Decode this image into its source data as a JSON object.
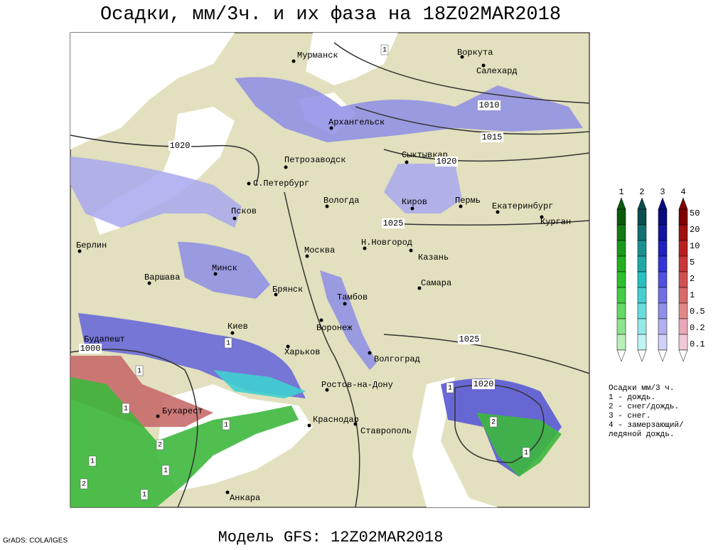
{
  "title": "Осадки, мм/3ч. и их фаза на 18Z02MAR2018",
  "footer": "Модель GFS: 12Z02MAR2018",
  "credit": "GrADS: COLA/IGES",
  "cities": [
    "Мурманск",
    "Воркута",
    "Салехард",
    "Архангельск",
    "Сыктывкар",
    "Петрозаводск",
    "С.Петербург",
    "Вологда",
    "Киров",
    "Пермь",
    "Екатеринбург",
    "Курган",
    "Псков",
    "Н.Новгород",
    "Берлин",
    "Москва",
    "Казань",
    "Минск",
    "Варшава",
    "Самара",
    "Брянск",
    "Тамбов",
    "Воронеж",
    "Киев",
    "Будапешт",
    "Харьков",
    "Волгоград",
    "Ростов-на-Дону",
    "Бухарест",
    "Краснодар",
    "Ставрополь",
    "Анкара"
  ],
  "isobars": [
    "1010",
    "1015",
    "1020",
    "1020",
    "1025",
    "1025",
    "1000",
    "1020"
  ],
  "phase_markers": [
    "1",
    "1",
    "1",
    "1",
    "1",
    "2",
    "1",
    "2",
    "1",
    "1",
    "1",
    "2",
    "1"
  ],
  "legend": {
    "phases": [
      "1",
      "2",
      "3",
      "4"
    ],
    "scale": [
      "50",
      "20",
      "10",
      "5",
      "2",
      "1",
      "0.5",
      "0.2",
      "0.1"
    ],
    "notes": [
      "Осадки мм/3 ч.",
      "1 - дождь.",
      "2 - снег/дождь.",
      "3 - снег.",
      "4 - замерзающий/",
      "ледяной дождь."
    ]
  }
}
